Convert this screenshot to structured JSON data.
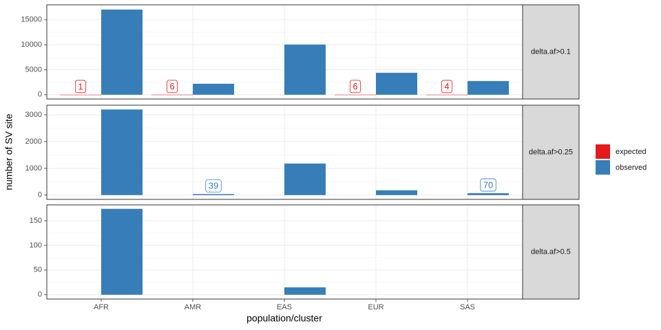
{
  "chart_data": {
    "type": "bar",
    "x_label": "population/cluster",
    "y_label": "number of SV site",
    "categories": [
      "AFR",
      "AMR",
      "EAS",
      "EUR",
      "SAS"
    ],
    "series": [
      {
        "name": "expected",
        "color": "#e41a1c"
      },
      {
        "name": "observed",
        "color": "#377eb8"
      }
    ],
    "grid": true,
    "facets": [
      {
        "label": "delta.af>0.1",
        "ylim": [
          -850,
          18000
        ],
        "yticks": [
          0,
          5000,
          10000,
          15000
        ],
        "values": [
          [
            1,
            6,
            null,
            6,
            4
          ],
          [
            17050,
            2200,
            10050,
            4400,
            2750
          ]
        ],
        "value_labels": [
          [
            "1",
            "6",
            null,
            "6",
            "4"
          ],
          [
            null,
            null,
            null,
            null,
            null
          ]
        ]
      },
      {
        "label": "delta.af>0.25",
        "ylim": [
          -160,
          3360
        ],
        "yticks": [
          0,
          1000,
          2000,
          3000
        ],
        "values": [
          [
            null,
            null,
            null,
            null,
            null
          ],
          [
            3200,
            39,
            1180,
            180,
            70
          ]
        ],
        "value_labels": [
          [
            null,
            null,
            null,
            null,
            null
          ],
          [
            null,
            "39",
            null,
            null,
            "70"
          ]
        ]
      },
      {
        "label": "delta.af>0.5",
        "ylim": [
          -8.7,
          182
        ],
        "yticks": [
          0,
          50,
          100,
          150
        ],
        "values": [
          [
            null,
            null,
            null,
            null,
            null
          ],
          [
            174,
            null,
            15,
            null,
            null
          ]
        ],
        "value_labels": [
          [
            null,
            null,
            null,
            null,
            null
          ],
          [
            null,
            null,
            null,
            null,
            null
          ]
        ]
      }
    ]
  }
}
